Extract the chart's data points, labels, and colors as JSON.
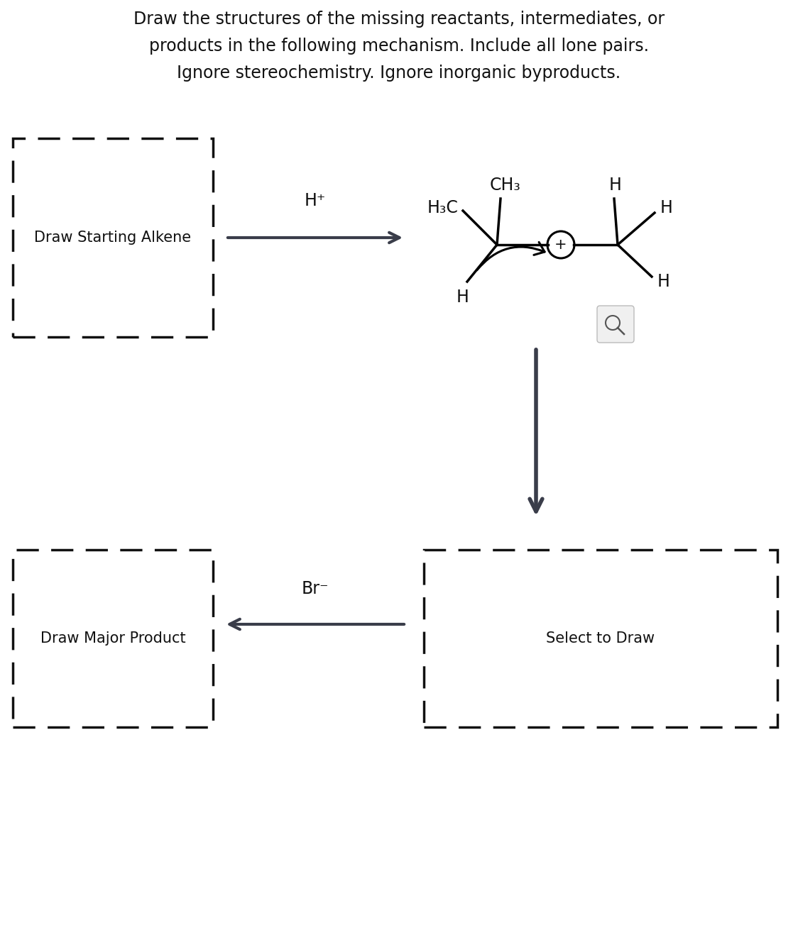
{
  "title_lines": [
    "Draw the structures of the missing reactants, intermediates, or",
    "products in the following mechanism. Include all lone pairs.",
    "Ignore stereochemistry. Ignore inorganic byproducts."
  ],
  "title_fontsize": 17,
  "background_color": "#ffffff",
  "box1_label": "Draw Starting Alkene",
  "box2_label": "Draw Major Product",
  "box3_label": "Select to Draw",
  "arrow1_label": "H⁺",
  "arrow2_label": "Br⁻",
  "box_color": "#111111",
  "text_color": "#111111",
  "arrow_color": "#3a3d4a"
}
